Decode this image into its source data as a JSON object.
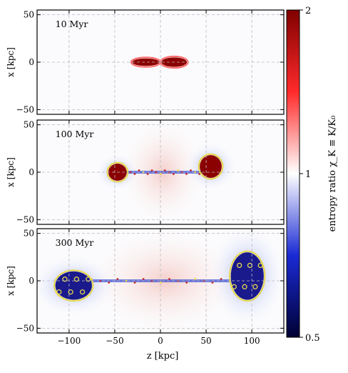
{
  "chart_data": {
    "type": "heatmap",
    "panels": [
      {
        "label": "10 Myr",
        "ylabel": "x [kpc]",
        "lobes": [
          {
            "center": [
              -16,
              0
            ],
            "half_width": [
              15,
              4
            ],
            "fill": "#8b0000",
            "contour": "#ff6a6a"
          },
          {
            "center": [
              15,
              0
            ],
            "half_width": [
              14,
              5
            ],
            "fill": "#8b0000",
            "contour": "#ff6a6a"
          }
        ],
        "jet_span": [
          0,
          0
        ]
      },
      {
        "label": "100 Myr",
        "ylabel": "x [kpc]",
        "lobes": [
          {
            "center": [
              -47,
              0
            ],
            "half_width": [
              10,
              9
            ],
            "fill": "#8b0000",
            "contour": "#e8d84a"
          },
          {
            "center": [
              55,
              6
            ],
            "half_width": [
              12,
              12
            ],
            "fill": "#8b0000",
            "contour": "#e8d84a"
          }
        ],
        "jet_span": [
          -40,
          45
        ]
      },
      {
        "label": "300 Myr",
        "ylabel": "x [kpc]",
        "lobes": [
          {
            "center": [
              -95,
              -5
            ],
            "half_width": [
              20,
              15
            ],
            "fill": "#1a1a8c",
            "contour": "#e8d84a"
          },
          {
            "center": [
              95,
              5
            ],
            "half_width": [
              18,
              25
            ],
            "fill": "#1a1a8c",
            "contour": "#e8d84a"
          }
        ],
        "jet_span": [
          -80,
          90
        ]
      }
    ],
    "x_axis": {
      "label": "z [kpc]",
      "range": [
        -135,
        135
      ],
      "ticks": [
        -100,
        -50,
        0,
        50,
        100
      ]
    },
    "y_axis": {
      "range": [
        -55,
        55
      ],
      "ticks": [
        -50,
        0,
        50
      ]
    },
    "colorbar": {
      "label": "entropy ratio χ_K ≡ K/K₀",
      "scale": "log",
      "range": [
        0.5,
        2
      ],
      "ticks": [
        "0.5",
        "1",
        "2"
      ],
      "colors": [
        "#000033",
        "#1a2ad4",
        "#ffffff",
        "#ff2a2a",
        "#800000"
      ]
    },
    "grid": true
  }
}
